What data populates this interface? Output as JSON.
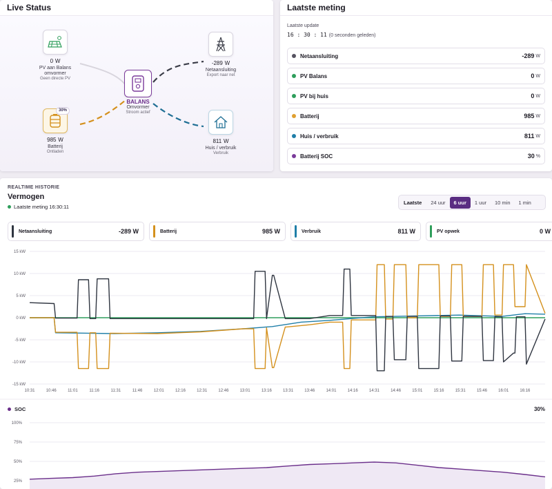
{
  "live": {
    "title": "Live Status",
    "pv": {
      "value": "0",
      "unit": "W",
      "label1": "PV aan Balans",
      "label2": "omvormer",
      "sub": "Geen directe PV"
    },
    "grid": {
      "value": "-289",
      "unit": "W",
      "label1": "Netaansluiting",
      "sub": "Export naar net"
    },
    "inverter": {
      "name": "BALANS",
      "label": "Omvormer",
      "sub": "Stroom actief"
    },
    "battery": {
      "value": "985",
      "unit": "W",
      "label": "Batterij",
      "sub": "Ontladen",
      "soc_badge": "30%"
    },
    "house": {
      "value": "811",
      "unit": "W",
      "label": "Huis / verbruik",
      "sub": "Verbruik"
    }
  },
  "meting": {
    "title": "Laatste meting",
    "update_label": "Laatste update",
    "update_time": "16 : 30 : 11",
    "update_ago": "(0 seconden geleden)",
    "rows": [
      {
        "label": "Netaansluiting",
        "value": "-289",
        "unit": "W",
        "color": "#555260"
      },
      {
        "label": "PV Balans",
        "value": "0",
        "unit": "W",
        "color": "#2e9e5b"
      },
      {
        "label": "PV bij huis",
        "value": "0",
        "unit": "W",
        "color": "#2e9e5b"
      },
      {
        "label": "Batterij",
        "value": "985",
        "unit": "W",
        "color": "#e0a030"
      },
      {
        "label": "Huis / verbruik",
        "value": "811",
        "unit": "W",
        "color": "#1f7ea8"
      },
      {
        "label": "Batterij SOC",
        "value": "30",
        "unit": "%",
        "color": "#7a3a9a"
      }
    ]
  },
  "history": {
    "kicker": "REALTIME HISTORIE",
    "title": "Vermogen",
    "last": "Laatste meting 16:30:11",
    "range_label": "Laatste",
    "ranges": [
      "24 uur",
      "6 uur",
      "1 uur",
      "10 min",
      "1 min"
    ],
    "active_range": "6 uur",
    "legend": [
      {
        "label": "Netaansluiting",
        "value": "-289 W",
        "color": "#2f3540"
      },
      {
        "label": "Batterij",
        "value": "985 W",
        "color": "#d4901c"
      },
      {
        "label": "Verbruik",
        "value": "811 W",
        "color": "#1f7ea8"
      },
      {
        "label": "PV opwek",
        "value": "0 W",
        "color": "#2e9e5b"
      }
    ],
    "soc_label": "SOC",
    "soc_value": "30%"
  },
  "chart_data": [
    {
      "type": "line",
      "ylabel": "",
      "ylim": [
        -15,
        15
      ],
      "yticks": [
        "15 kW",
        "10 kW",
        "5 kW",
        "0 kW",
        "-5 kW",
        "-10 kW",
        "-15 kW"
      ],
      "xticks": [
        "10:31",
        "10:46",
        "11:01",
        "11:16",
        "11:31",
        "11:46",
        "12:01",
        "12:16",
        "12:31",
        "12:46",
        "13:01",
        "13:16",
        "13:31",
        "13:46",
        "14:01",
        "14:16",
        "14:31",
        "14:46",
        "15:01",
        "15:16",
        "15:31",
        "15:46",
        "16:01",
        "16:16"
      ],
      "grid": true,
      "series": [
        {
          "name": "Netaansluiting",
          "color": "#2f3540",
          "x": [
            "10:31",
            "10:48",
            "10:49",
            "11:04",
            "11:05",
            "11:12",
            "11:13",
            "11:17",
            "11:18",
            "11:26",
            "11:27",
            "12:00",
            "13:07",
            "13:08",
            "13:15",
            "13:16",
            "13:20",
            "13:21",
            "13:29",
            "13:30",
            "13:46",
            "14:00",
            "14:09",
            "14:10",
            "14:14",
            "14:15",
            "14:32",
            "14:33",
            "14:38",
            "14:39",
            "14:44",
            "14:45",
            "14:53",
            "14:54",
            "15:01",
            "15:02",
            "15:16",
            "15:17",
            "15:24",
            "15:25",
            "15:32",
            "15:33",
            "15:46",
            "15:47",
            "15:54",
            "15:55",
            "16:00",
            "16:01",
            "16:08",
            "16:09",
            "16:10",
            "16:16",
            "16:17",
            "16:30"
          ],
          "values": [
            3.4,
            3.2,
            -0.1,
            -0.1,
            8.6,
            8.6,
            -0.2,
            -0.2,
            8.8,
            8.8,
            -0.2,
            -0.2,
            -0.2,
            10.5,
            10.5,
            -0.2,
            9.6,
            9.6,
            -0.2,
            -0.2,
            -0.2,
            0.5,
            0.5,
            11.0,
            11.0,
            0.5,
            0.5,
            -12.0,
            -12.0,
            0.3,
            0.3,
            -9.5,
            -9.5,
            0.3,
            0.3,
            -11.5,
            -11.5,
            0.4,
            0.4,
            -9.8,
            -9.8,
            0.3,
            0.3,
            -9.7,
            -9.7,
            0.2,
            0.2,
            -10.0,
            -8.0,
            -8.0,
            0.2,
            0.2,
            -10.5,
            -0.3
          ]
        },
        {
          "name": "Batterij",
          "color": "#d4901c",
          "x": [
            "10:31",
            "10:48",
            "10:49",
            "11:04",
            "11:05",
            "11:12",
            "11:13",
            "11:17",
            "11:18",
            "11:26",
            "11:27",
            "12:00",
            "12:30",
            "13:00",
            "13:07",
            "13:08",
            "13:15",
            "13:16",
            "13:20",
            "13:21",
            "13:29",
            "13:30",
            "13:46",
            "14:00",
            "14:09",
            "14:10",
            "14:14",
            "14:15",
            "14:32",
            "14:33",
            "14:38",
            "14:39",
            "14:44",
            "14:45",
            "14:53",
            "14:54",
            "15:01",
            "15:02",
            "15:16",
            "15:17",
            "15:24",
            "15:25",
            "15:32",
            "15:33",
            "15:46",
            "15:47",
            "15:54",
            "15:55",
            "16:00",
            "16:01",
            "16:08",
            "16:09",
            "16:16",
            "16:17",
            "16:30"
          ],
          "values": [
            0.0,
            0.0,
            -3.3,
            -3.3,
            -11.5,
            -11.5,
            -3.4,
            -3.4,
            -11.5,
            -11.5,
            -3.5,
            -3.6,
            -3.2,
            -2.5,
            -2.5,
            -11.5,
            -11.5,
            -2.3,
            -11.3,
            -11.3,
            -2.1,
            -2.1,
            -1.6,
            -1.0,
            -1.0,
            -11.5,
            -11.5,
            -0.5,
            -0.5,
            12.0,
            12.0,
            -0.3,
            -0.3,
            12.0,
            12.0,
            0.0,
            0.0,
            12.0,
            12.0,
            0.3,
            0.3,
            12.0,
            12.0,
            0.3,
            0.3,
            12.0,
            12.0,
            0.6,
            0.6,
            12.0,
            12.0,
            2.5,
            2.5,
            12.0,
            1.0
          ]
        },
        {
          "name": "Verbruik",
          "color": "#1f7ea8",
          "x": [
            "10:31",
            "10:48",
            "10:49",
            "11:30",
            "12:00",
            "12:30",
            "13:00",
            "13:20",
            "13:40",
            "14:00",
            "14:30",
            "15:00",
            "15:30",
            "16:00",
            "16:16",
            "16:30"
          ],
          "values": [
            0.0,
            0.0,
            -3.4,
            -3.6,
            -3.4,
            -3.1,
            -2.5,
            -2.0,
            -1.0,
            -0.6,
            0.2,
            0.4,
            0.6,
            0.3,
            0.9,
            0.8
          ]
        },
        {
          "name": "PV opwek",
          "color": "#2e9e5b",
          "x": [
            "10:31",
            "16:30"
          ],
          "values": [
            0,
            0
          ]
        }
      ]
    },
    {
      "type": "area",
      "ylim": [
        0,
        100
      ],
      "yticks": [
        "100%",
        "75%",
        "50%",
        "25%"
      ],
      "series": [
        {
          "name": "SOC",
          "color": "#6a2e8a",
          "x": [
            "10:31",
            "10:46",
            "11:01",
            "11:16",
            "11:31",
            "11:46",
            "12:01",
            "12:16",
            "12:31",
            "12:46",
            "13:01",
            "13:16",
            "13:31",
            "13:46",
            "14:01",
            "14:16",
            "14:31",
            "14:46",
            "15:01",
            "15:16",
            "15:31",
            "15:46",
            "16:01",
            "16:16",
            "16:30"
          ],
          "values": [
            27,
            28,
            29,
            31,
            34,
            36,
            37,
            38,
            39,
            40,
            41,
            42,
            44,
            46,
            47,
            48,
            49,
            48,
            45,
            42,
            40,
            38,
            36,
            33,
            30
          ]
        }
      ]
    }
  ]
}
